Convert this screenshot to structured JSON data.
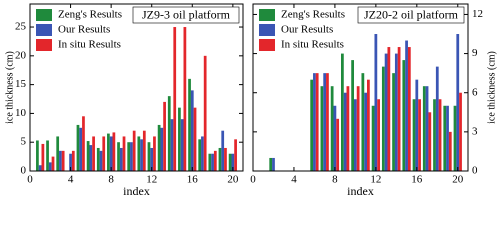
{
  "chart_data": [
    {
      "type": "bar",
      "title": "JZ9-3 oil platform",
      "xlabel": "index",
      "ylabel": "ice thickness (cm)",
      "y_axis_side": "left",
      "x": [
        1,
        2,
        3,
        4,
        5,
        6,
        7,
        8,
        9,
        10,
        11,
        12,
        13,
        14,
        15,
        16,
        17,
        18,
        19,
        20
      ],
      "xlim": [
        0,
        21
      ],
      "xticks": [
        0,
        4,
        8,
        12,
        16,
        20
      ],
      "ylim": [
        0,
        29
      ],
      "yticks": [
        0,
        5,
        10,
        15,
        20,
        25
      ],
      "series": [
        {
          "name": "Zeng's Results",
          "color": "#1f8a3c",
          "values": [
            5.3,
            5.3,
            6,
            0,
            8,
            5.2,
            4,
            6.5,
            5,
            5,
            6,
            5,
            8,
            13,
            11,
            16,
            5.5,
            3,
            4,
            3
          ]
        },
        {
          "name": "Our Results",
          "color": "#3a55b4",
          "values": [
            1,
            1.5,
            3.5,
            3,
            7.5,
            4.5,
            3.5,
            6,
            4,
            5,
            5.5,
            4,
            7.5,
            9,
            9,
            14,
            6,
            3,
            7,
            3
          ]
        },
        {
          "name": "In situ Results",
          "color": "#e3262b",
          "values": [
            4.7,
            2.5,
            3.5,
            3.5,
            9.5,
            6,
            6,
            6.7,
            6,
            7,
            7,
            6,
            12,
            25,
            25,
            11,
            20,
            3.5,
            4,
            5.5
          ]
        }
      ]
    },
    {
      "type": "bar",
      "title": "JZ20-2 oil platform",
      "xlabel": "index",
      "ylabel": "ice thickness (cm)",
      "y_axis_side": "right",
      "x": [
        1,
        2,
        3,
        4,
        5,
        6,
        7,
        8,
        9,
        10,
        11,
        12,
        13,
        14,
        15,
        16,
        17,
        18,
        19,
        20
      ],
      "xlim": [
        0,
        21
      ],
      "xticks": [
        0,
        4,
        8,
        12,
        16,
        20
      ],
      "ylim": [
        0,
        12.8
      ],
      "yticks": [
        0,
        3,
        6,
        9,
        12
      ],
      "series": [
        {
          "name": "Zeng's Results",
          "color": "#1f8a3c",
          "values": [
            0,
            1,
            0,
            0,
            0,
            7,
            6.5,
            6.5,
            9,
            8.5,
            7.5,
            5,
            8,
            7.5,
            8.5,
            5.5,
            6.5,
            5.5,
            5,
            5
          ]
        },
        {
          "name": "Our Results",
          "color": "#3a55b4",
          "values": [
            0,
            1,
            0,
            0,
            0,
            7.5,
            7.5,
            5,
            6,
            5.5,
            6,
            10.5,
            9,
            9,
            10,
            7,
            6.5,
            8,
            5,
            10.5
          ]
        },
        {
          "name": "In situ Results",
          "color": "#e3262b",
          "values": [
            0,
            0,
            0,
            0,
            0,
            7.5,
            7.5,
            4,
            6.5,
            6.5,
            7,
            5.5,
            9.5,
            9.5,
            9.5,
            5.5,
            4.5,
            5.5,
            3,
            6
          ]
        }
      ]
    }
  ]
}
